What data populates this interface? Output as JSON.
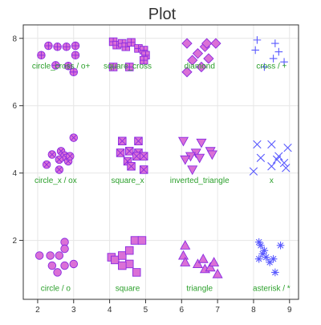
{
  "chart_data": {
    "type": "scatter",
    "title": "Plot",
    "xlabel": "",
    "ylabel": "",
    "xlim": [
      1.6,
      9.25
    ],
    "ylim": [
      0.25,
      8.4
    ],
    "xticks": [
      2,
      3,
      4,
      5,
      6,
      7,
      8,
      9
    ],
    "yticks": [
      2,
      4,
      6,
      8
    ],
    "grid": true,
    "legend": "none",
    "colors": {
      "label": "#2ca02c",
      "marker_fill": "#da70d6",
      "marker_stroke": "#8a2be2",
      "line_marker": "#5a5aff",
      "grid": "#e6e6e6",
      "axis": "#333333"
    },
    "series": [
      {
        "marker": "circle_cross",
        "label": "circle_cross / o+",
        "label_pos": [
          2.65,
          7.1
        ],
        "points": [
          [
            2.1,
            7.5
          ],
          [
            2.3,
            7.78
          ],
          [
            2.55,
            7.75
          ],
          [
            2.8,
            7.75
          ],
          [
            3.05,
            7.78
          ],
          [
            2.5,
            7.2
          ],
          [
            2.85,
            7.18
          ],
          [
            3.0,
            7.0
          ],
          [
            3.05,
            7.5
          ]
        ]
      },
      {
        "marker": "square_cross",
        "label": "square_cross",
        "label_pos": [
          4.5,
          7.1
        ],
        "points": [
          [
            4.1,
            7.9
          ],
          [
            4.2,
            7.8
          ],
          [
            4.35,
            7.85
          ],
          [
            4.45,
            7.75
          ],
          [
            4.6,
            7.88
          ],
          [
            4.8,
            7.7
          ],
          [
            4.95,
            7.65
          ],
          [
            5.0,
            7.5
          ],
          [
            4.95,
            7.35
          ],
          [
            4.1,
            7.15
          ],
          [
            4.55,
            7.15
          ]
        ]
      },
      {
        "marker": "diamond",
        "label": "diamond",
        "label_pos": [
          6.5,
          7.1
        ],
        "points": [
          [
            6.15,
            7.85
          ],
          [
            6.45,
            7.55
          ],
          [
            6.65,
            7.75
          ],
          [
            6.7,
            7.85
          ],
          [
            6.95,
            7.85
          ],
          [
            6.3,
            7.35
          ],
          [
            6.75,
            7.4
          ],
          [
            6.55,
            7.15
          ],
          [
            6.15,
            7.0
          ]
        ]
      },
      {
        "marker": "cross",
        "label": "cross / +",
        "label_pos": [
          8.5,
          7.1
        ],
        "points": [
          [
            8.1,
            7.95
          ],
          [
            8.05,
            7.65
          ],
          [
            8.6,
            7.85
          ],
          [
            8.7,
            7.6
          ],
          [
            8.55,
            7.4
          ],
          [
            8.85,
            7.3
          ],
          [
            8.3,
            7.15
          ]
        ]
      },
      {
        "marker": "circle_x",
        "label": "circle_x / ox",
        "label_pos": [
          2.5,
          3.7
        ],
        "points": [
          [
            2.25,
            4.25
          ],
          [
            2.4,
            4.55
          ],
          [
            2.65,
            4.65
          ],
          [
            2.75,
            4.52
          ],
          [
            2.8,
            4.45
          ],
          [
            2.6,
            4.4
          ],
          [
            2.85,
            4.35
          ],
          [
            2.6,
            4.1
          ],
          [
            2.9,
            4.5
          ],
          [
            3.0,
            5.05
          ]
        ]
      },
      {
        "marker": "square_x",
        "label": "square_x",
        "label_pos": [
          4.5,
          3.7
        ],
        "points": [
          [
            4.35,
            4.95
          ],
          [
            4.3,
            4.6
          ],
          [
            4.55,
            4.65
          ],
          [
            4.8,
            4.95
          ],
          [
            4.8,
            4.6
          ],
          [
            4.75,
            4.5
          ],
          [
            4.95,
            4.5
          ],
          [
            4.5,
            4.35
          ],
          [
            4.6,
            4.2
          ],
          [
            4.95,
            4.1
          ]
        ]
      },
      {
        "marker": "inverted_triangle",
        "label": "inverted_triangle",
        "label_pos": [
          6.5,
          3.7
        ],
        "points": [
          [
            6.05,
            4.95
          ],
          [
            6.55,
            4.9
          ],
          [
            6.4,
            4.6
          ],
          [
            6.25,
            4.5
          ],
          [
            6.5,
            4.45
          ],
          [
            6.8,
            4.65
          ],
          [
            6.85,
            4.55
          ],
          [
            6.1,
            4.4
          ],
          [
            6.3,
            4.1
          ]
        ]
      },
      {
        "marker": "x",
        "label": "x",
        "label_pos": [
          8.5,
          3.7
        ],
        "points": [
          [
            8.1,
            4.85
          ],
          [
            8.5,
            4.85
          ],
          [
            8.95,
            4.75
          ],
          [
            8.2,
            4.45
          ],
          [
            8.7,
            4.5
          ],
          [
            8.65,
            4.4
          ],
          [
            8.85,
            4.3
          ],
          [
            8.5,
            4.2
          ],
          [
            8.0,
            4.05
          ],
          [
            8.9,
            4.15
          ]
        ]
      },
      {
        "marker": "circle",
        "label": "circle / o",
        "label_pos": [
          2.5,
          0.5
        ],
        "points": [
          [
            2.05,
            1.55
          ],
          [
            2.35,
            1.55
          ],
          [
            2.75,
            1.95
          ],
          [
            2.75,
            1.75
          ],
          [
            2.6,
            1.55
          ],
          [
            2.4,
            1.25
          ],
          [
            2.55,
            1.05
          ],
          [
            2.75,
            1.25
          ],
          [
            3.0,
            1.3
          ]
        ]
      },
      {
        "marker": "square",
        "label": "square",
        "label_pos": [
          4.5,
          0.5
        ],
        "points": [
          [
            4.05,
            1.5
          ],
          [
            4.15,
            1.42
          ],
          [
            4.35,
            1.55
          ],
          [
            4.55,
            1.7
          ],
          [
            4.7,
            2.0
          ],
          [
            4.9,
            2.0
          ],
          [
            4.55,
            1.3
          ],
          [
            4.75,
            1.05
          ],
          [
            4.35,
            1.25
          ]
        ]
      },
      {
        "marker": "triangle",
        "label": "triangle",
        "label_pos": [
          6.5,
          0.5
        ],
        "points": [
          [
            6.1,
            1.85
          ],
          [
            6.05,
            1.55
          ],
          [
            6.1,
            1.35
          ],
          [
            6.45,
            1.3
          ],
          [
            6.6,
            1.45
          ],
          [
            6.65,
            1.15
          ],
          [
            6.8,
            1.2
          ],
          [
            6.9,
            1.35
          ],
          [
            7.0,
            1.0
          ]
        ]
      },
      {
        "marker": "asterisk",
        "label": "asterisk / *",
        "label_pos": [
          8.5,
          0.5
        ],
        "points": [
          [
            8.15,
            1.95
          ],
          [
            8.2,
            1.85
          ],
          [
            8.3,
            1.7
          ],
          [
            8.25,
            1.6
          ],
          [
            8.35,
            1.5
          ],
          [
            8.15,
            1.45
          ],
          [
            8.55,
            1.45
          ],
          [
            8.45,
            1.35
          ],
          [
            8.75,
            1.85
          ],
          [
            8.6,
            1.05
          ]
        ]
      }
    ]
  }
}
